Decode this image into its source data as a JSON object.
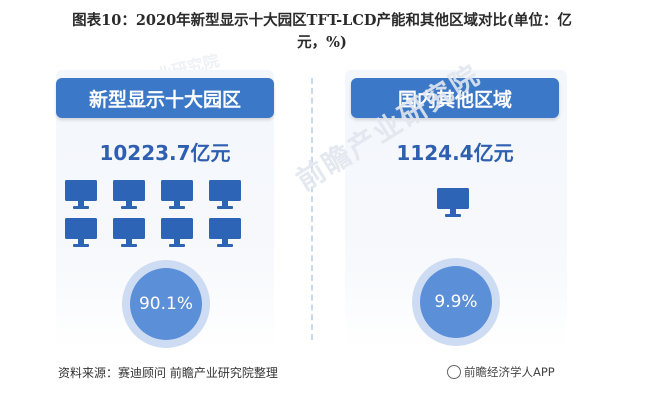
{
  "header": {
    "title": "图表10：2020年新型显示十大园区TFT-LCD产能和其他区域对比(单位：亿元，%)"
  },
  "chart_data": {
    "type": "comparison-infographic",
    "title": "图表10：2020年新型显示十大园区TFT-LCD产能和其他区域对比(单位：亿元，%)",
    "unit": "亿元，%",
    "categories": [
      "新型显示十大园区",
      "国内其他区域"
    ],
    "values": [
      10223.7,
      1124.4
    ],
    "value_labels": [
      "10223.7亿元",
      "1124.4亿元"
    ],
    "shares": [
      90.1,
      9.9
    ],
    "share_labels": [
      "90.1%",
      "9.9%"
    ],
    "icon_counts": [
      8,
      1
    ],
    "colors": {
      "banner": "#3c78c8",
      "value_text": "#2f5fb0",
      "icon": "#2e64b6",
      "ring_outer": "#cddcf3",
      "ring_inner": "#5b8fd8"
    }
  },
  "icons": {
    "monitor": "monitor-icon"
  },
  "footer": {
    "source": "资料来源：赛迪顾问 前瞻产业研究院整理",
    "brand": "前瞻经济学人APP"
  },
  "watermark": {
    "text": "前瞻产业研究院"
  }
}
